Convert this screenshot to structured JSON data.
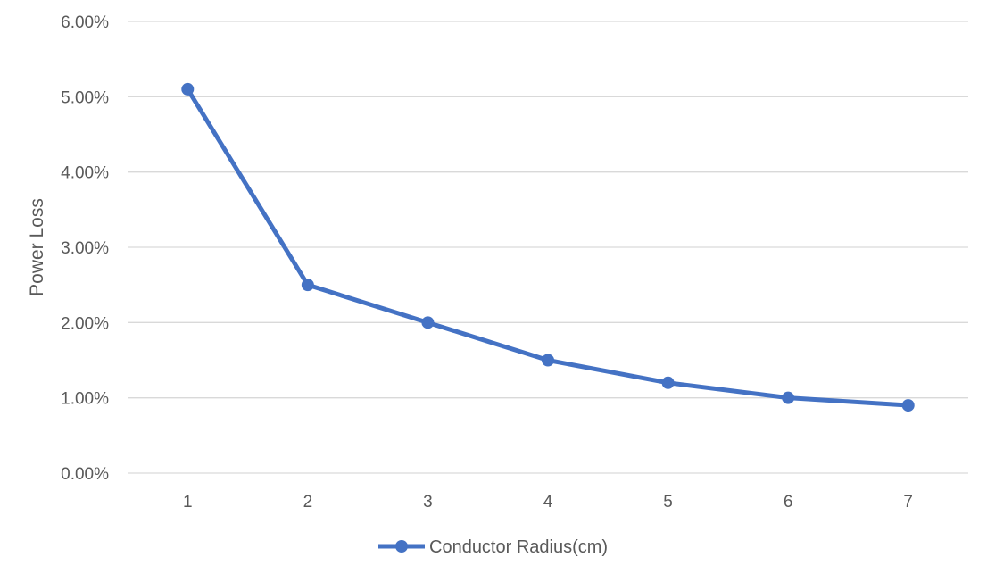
{
  "chart_data": {
    "type": "line",
    "title": "",
    "xlabel": "",
    "ylabel": "Power Loss",
    "categories": [
      "1",
      "2",
      "3",
      "4",
      "5",
      "6",
      "7"
    ],
    "yticks": [
      "0.00%",
      "1.00%",
      "2.00%",
      "3.00%",
      "4.00%",
      "5.00%",
      "6.00%"
    ],
    "ylim": [
      0,
      6
    ],
    "grid": "horizontal",
    "legend_position": "bottom",
    "series": [
      {
        "name": "Conductor Radius(cm)",
        "color": "#4472C4",
        "values": [
          5.1,
          2.5,
          2.0,
          1.5,
          1.2,
          1.0,
          0.9
        ]
      }
    ]
  }
}
